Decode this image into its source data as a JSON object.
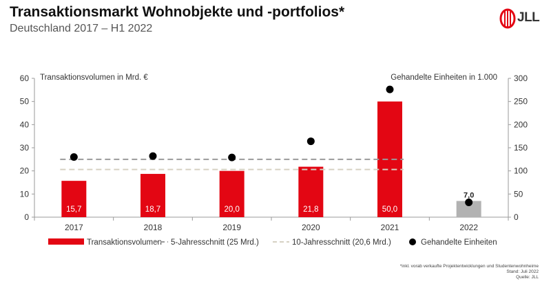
{
  "header": {
    "title": "Transaktionsmarkt Wohnobjekte und -portfolios*",
    "subtitle": "Deutschland 2017 – H1 2022",
    "logo_text": "JLL"
  },
  "footnotes": [
    "*inkl. vorab verkaufte Projektentwicklungen und Studentenwohnheime",
    "Stand: Juli 2022",
    "Quelle: JLL"
  ],
  "colors": {
    "bar": "#e30613",
    "bar_partial": "#b2b2b2",
    "avg5": "#9a9a9a",
    "avg10": "#d6d1c2",
    "dot": "#000000",
    "logo": "#e30613"
  },
  "chart_data": {
    "type": "bar",
    "categories": [
      "2017",
      "2018",
      "2019",
      "2020",
      "2021",
      "2022"
    ],
    "ylabel": "Transaktionsvolumen in Mrd. €",
    "y2label": "Gehandelte Einheiten in 1.000",
    "ylim": [
      0,
      60
    ],
    "y2lim": [
      0,
      300
    ],
    "yticks": [
      0,
      10,
      20,
      30,
      40,
      50,
      60
    ],
    "y2ticks": [
      0,
      50,
      100,
      150,
      200,
      250,
      300
    ],
    "grid": false,
    "legend_position": "bottom",
    "series": [
      {
        "name": "Transaktionsvolumen",
        "kind": "bar",
        "axis": "left",
        "values": [
          15.7,
          18.7,
          20.0,
          21.8,
          50.0,
          7.0
        ],
        "labels": [
          "15,7",
          "18,7",
          "20,0",
          "21,8",
          "50,0",
          "7,0"
        ],
        "highlight_last": true
      },
      {
        "name": "5-Jahresschnitt (25 Mrd.)",
        "kind": "dashed-line",
        "axis": "left",
        "value": 25,
        "span": [
          "2017",
          "2021"
        ]
      },
      {
        "name": "10-Jahresschnitt (20,6 Mrd.)",
        "kind": "dashed-line",
        "axis": "left",
        "value": 20.6,
        "span": [
          "2017",
          "2021"
        ]
      },
      {
        "name": "Gehandelte Einheiten",
        "kind": "dot",
        "axis": "right",
        "values": [
          130,
          132,
          129,
          164,
          276,
          32
        ]
      }
    ]
  }
}
